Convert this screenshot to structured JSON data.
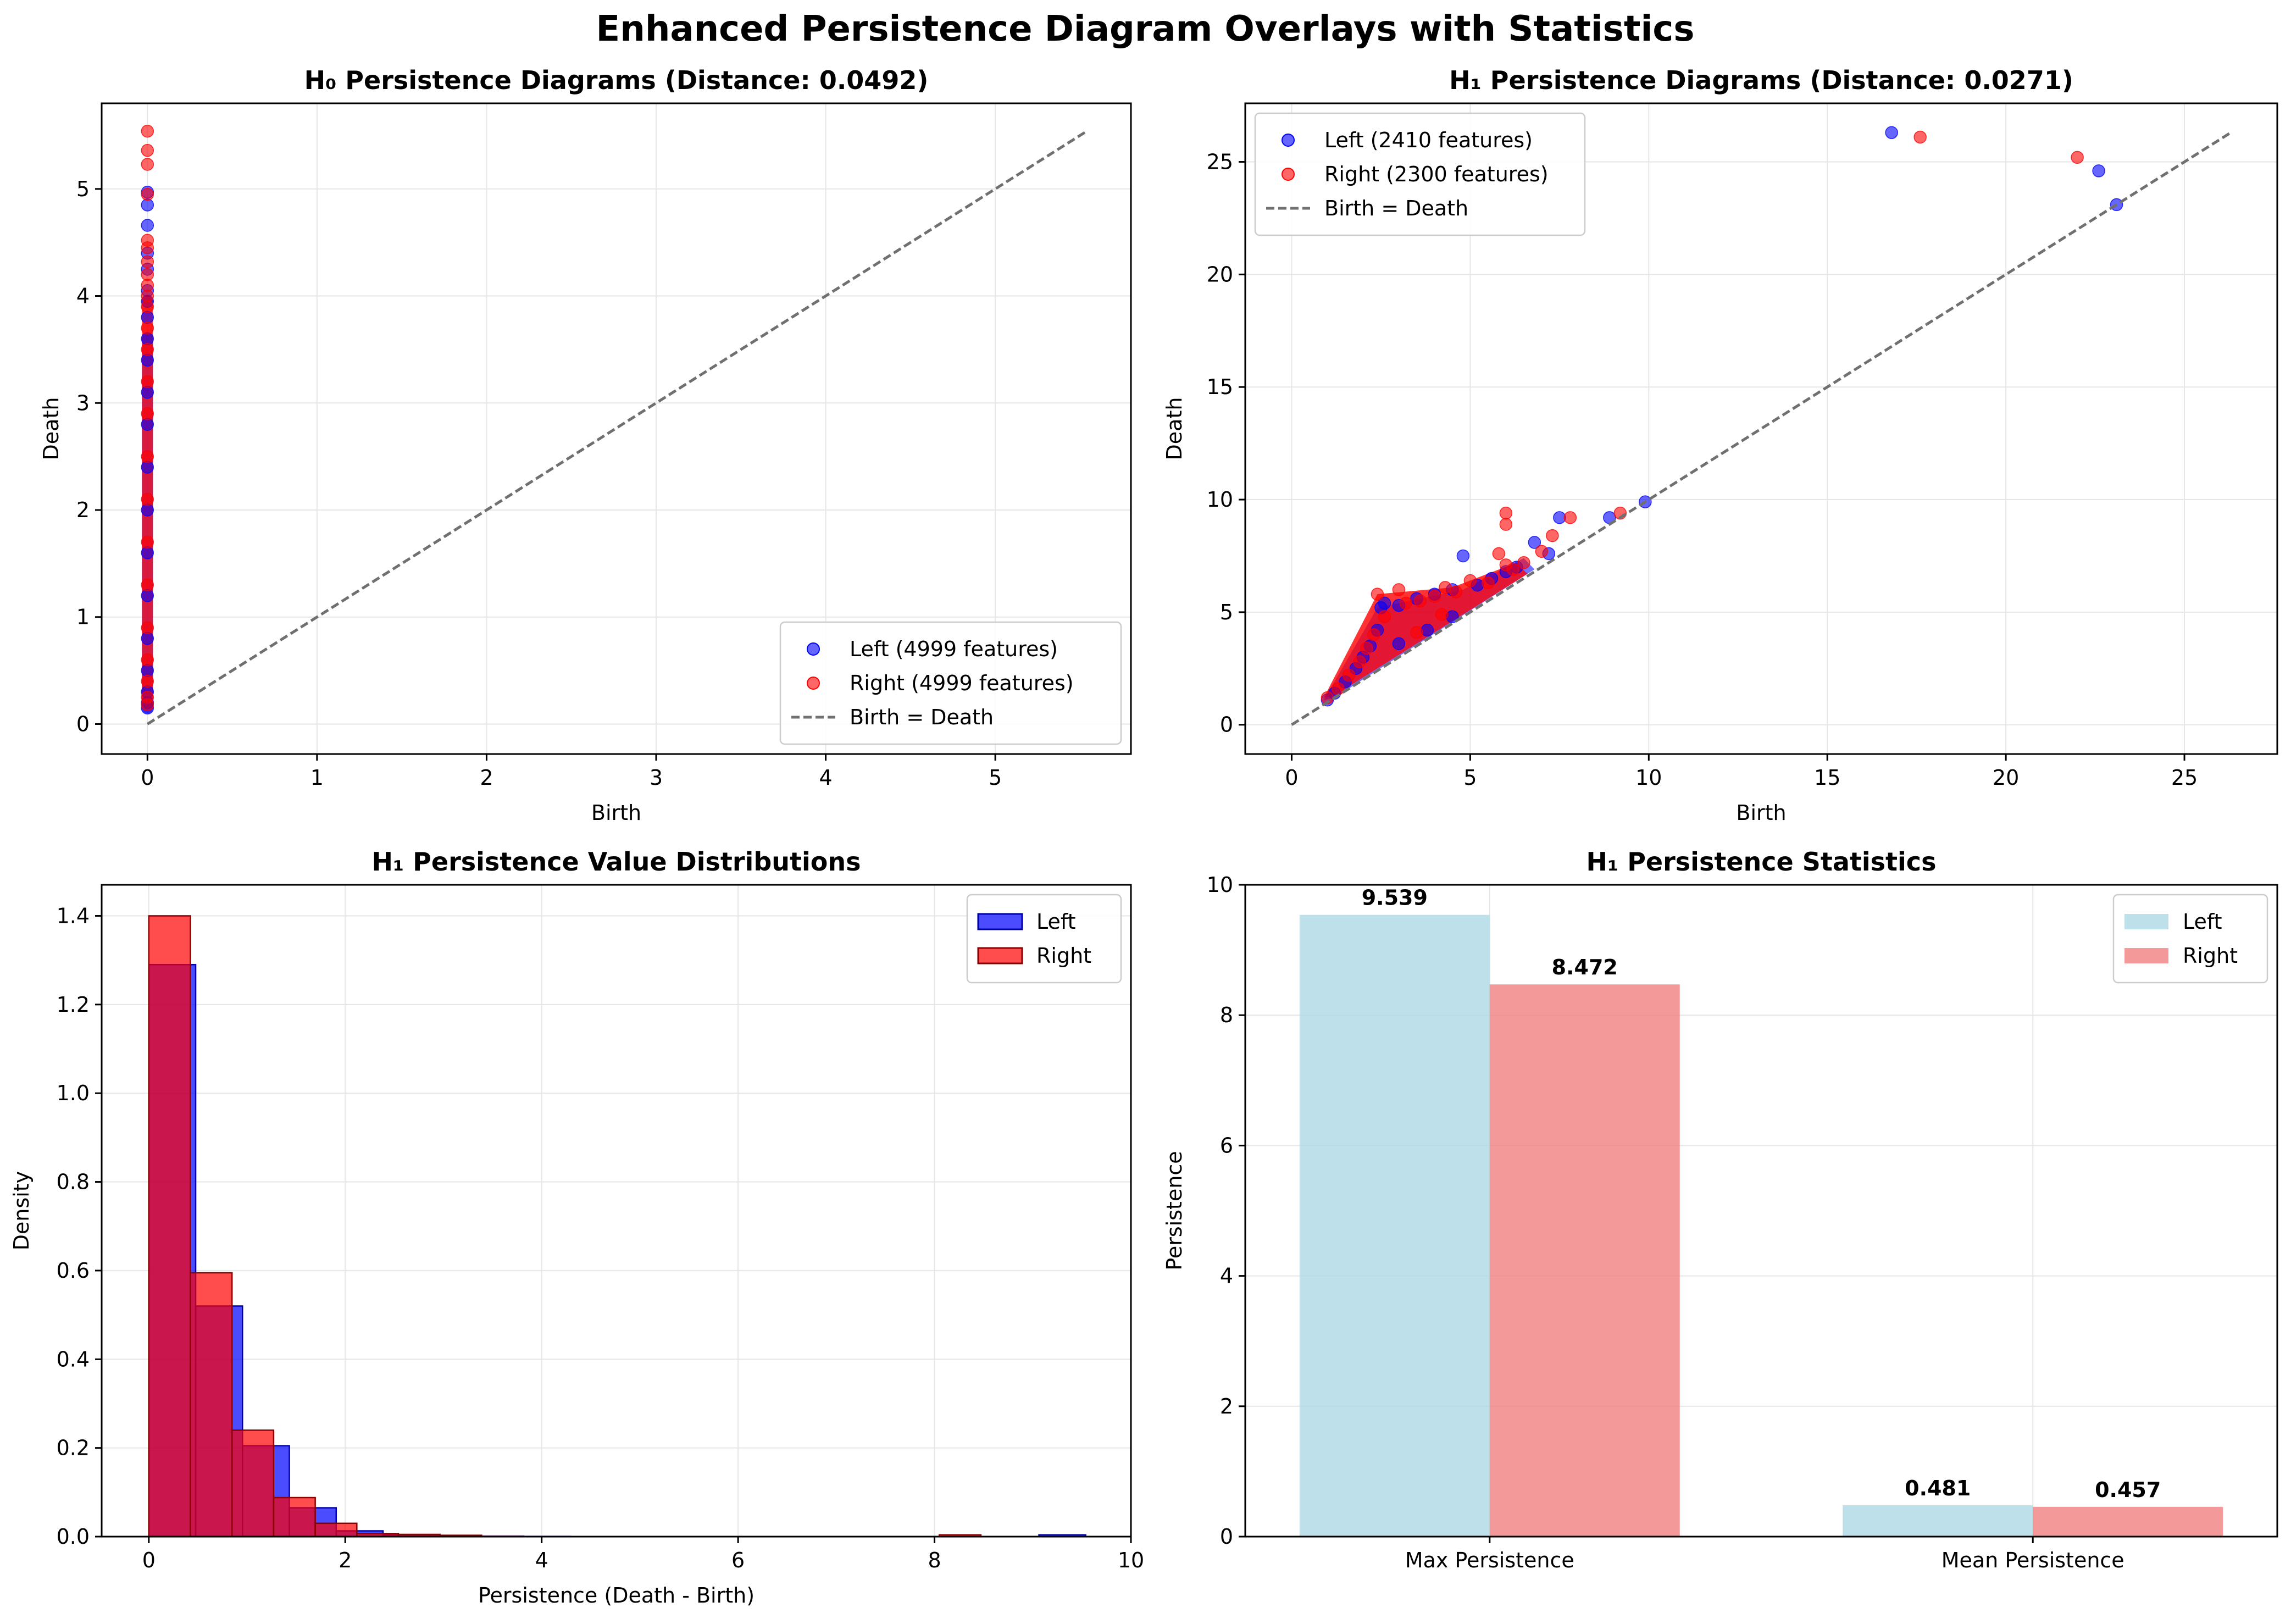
{
  "figure": {
    "title": "Enhanced Persistence Diagram Overlays with Statistics"
  },
  "chart_data": [
    {
      "type": "scatter",
      "title": "H₀ Persistence Diagrams (Distance: 0.0492)",
      "xlabel": "Birth",
      "ylabel": "Death",
      "xlim": [
        -0.27,
        5.8
      ],
      "ylim": [
        -0.28,
        5.8
      ],
      "xticks": [
        0,
        1,
        2,
        3,
        4,
        5
      ],
      "yticks": [
        0,
        1,
        2,
        3,
        4,
        5
      ],
      "grid": true,
      "legend_position": "lower-right",
      "series": [
        {
          "name": "Left (4999 features)",
          "color": "#0000ff",
          "points": [
            [
              0,
              0.15
            ],
            [
              0,
              0.2
            ],
            [
              0,
              0.3
            ],
            [
              0,
              0.5
            ],
            [
              0,
              0.8
            ],
            [
              0,
              1.2
            ],
            [
              0,
              1.6
            ],
            [
              0,
              2.0
            ],
            [
              0,
              2.4
            ],
            [
              0,
              2.8
            ],
            [
              0,
              3.1
            ],
            [
              0,
              3.4
            ],
            [
              0,
              3.6
            ],
            [
              0,
              3.8
            ],
            [
              0,
              3.95
            ],
            [
              0,
              4.05
            ],
            [
              0,
              4.25
            ],
            [
              0,
              4.4
            ],
            [
              0,
              4.66
            ],
            [
              0,
              4.85
            ],
            [
              0,
              4.97
            ]
          ]
        },
        {
          "name": "Right (4999 features)",
          "color": "#ff0000",
          "points": [
            [
              0,
              0.18
            ],
            [
              0,
              0.25
            ],
            [
              0,
              0.4
            ],
            [
              0,
              0.6
            ],
            [
              0,
              0.9
            ],
            [
              0,
              1.3
            ],
            [
              0,
              1.7
            ],
            [
              0,
              2.1
            ],
            [
              0,
              2.5
            ],
            [
              0,
              2.9
            ],
            [
              0,
              3.2
            ],
            [
              0,
              3.5
            ],
            [
              0,
              3.7
            ],
            [
              0,
              3.9
            ],
            [
              0,
              4.0
            ],
            [
              0,
              4.1
            ],
            [
              0,
              4.2
            ],
            [
              0,
              4.32
            ],
            [
              0,
              4.45
            ],
            [
              0,
              4.52
            ],
            [
              0,
              4.95
            ],
            [
              0,
              5.23
            ],
            [
              0,
              5.36
            ],
            [
              0,
              5.54
            ]
          ]
        }
      ],
      "reference_line": {
        "name": "Birth = Death",
        "from": [
          0,
          0
        ],
        "to": [
          5.53,
          5.53
        ],
        "color": "#707070"
      }
    },
    {
      "type": "scatter",
      "title": "H₁ Persistence Diagrams (Distance: 0.0271)",
      "xlabel": "Birth",
      "ylabel": "Death",
      "xlim": [
        -1.3,
        27.6
      ],
      "ylim": [
        -1.3,
        27.6
      ],
      "xticks": [
        0,
        5,
        10,
        15,
        20,
        25
      ],
      "yticks": [
        0,
        5,
        10,
        15,
        20,
        25
      ],
      "grid": true,
      "legend_position": "upper-left",
      "series": [
        {
          "name": "Left (2410 features)",
          "color": "#0000ff",
          "points": [
            [
              1.0,
              1.1
            ],
            [
              1.2,
              1.4
            ],
            [
              1.5,
              1.9
            ],
            [
              1.8,
              2.5
            ],
            [
              2.0,
              3.0
            ],
            [
              2.2,
              3.5
            ],
            [
              2.4,
              4.2
            ],
            [
              2.5,
              5.2
            ],
            [
              2.6,
              5.4
            ],
            [
              3.0,
              5.3
            ],
            [
              3.5,
              5.6
            ],
            [
              4.0,
              5.8
            ],
            [
              4.5,
              6.0
            ],
            [
              4.8,
              7.5
            ],
            [
              5.2,
              6.2
            ],
            [
              5.6,
              6.5
            ],
            [
              6.0,
              6.8
            ],
            [
              6.3,
              7.0
            ],
            [
              6.8,
              8.1
            ],
            [
              7.2,
              7.6
            ],
            [
              7.5,
              9.2
            ],
            [
              8.9,
              9.2
            ],
            [
              9.9,
              9.9
            ],
            [
              16.8,
              26.3
            ],
            [
              22.6,
              24.6
            ],
            [
              23.1,
              23.1
            ],
            [
              3.0,
              3.6
            ],
            [
              3.8,
              4.2
            ],
            [
              4.5,
              4.8
            ]
          ]
        },
        {
          "name": "Right (2300 features)",
          "color": "#ff0000",
          "points": [
            [
              1.0,
              1.2
            ],
            [
              1.3,
              1.6
            ],
            [
              1.6,
              2.2
            ],
            [
              1.9,
              2.8
            ],
            [
              2.1,
              3.4
            ],
            [
              2.3,
              4.0
            ],
            [
              2.4,
              5.8
            ],
            [
              2.6,
              4.8
            ],
            [
              3.0,
              6.0
            ],
            [
              3.2,
              5.4
            ],
            [
              3.6,
              5.5
            ],
            [
              4.0,
              5.7
            ],
            [
              4.3,
              6.1
            ],
            [
              4.6,
              5.9
            ],
            [
              5.0,
              6.4
            ],
            [
              5.5,
              6.3
            ],
            [
              6.0,
              7.1
            ],
            [
              6.2,
              6.9
            ],
            [
              6.5,
              7.2
            ],
            [
              6.0,
              9.4
            ],
            [
              6.0,
              8.9
            ],
            [
              7.0,
              7.7
            ],
            [
              7.3,
              8.4
            ],
            [
              7.8,
              9.2
            ],
            [
              5.8,
              7.6
            ],
            [
              9.2,
              9.4
            ],
            [
              17.6,
              26.1
            ],
            [
              22.0,
              25.2
            ],
            [
              3.5,
              4.1
            ],
            [
              4.2,
              4.9
            ]
          ]
        }
      ],
      "dense_band": true,
      "reference_line": {
        "name": "Birth = Death",
        "from": [
          0,
          0
        ],
        "to": [
          26.3,
          26.3
        ],
        "color": "#707070"
      }
    },
    {
      "type": "histogram",
      "title": "H₁ Persistence Value Distributions",
      "xlabel": "Persistence (Death - Birth)",
      "ylabel": "Density",
      "xlim": [
        -0.48,
        10.0
      ],
      "ylim": [
        0,
        1.47
      ],
      "xticks": [
        0,
        2,
        4,
        6,
        8,
        10
      ],
      "yticks": [
        0.0,
        0.2,
        0.4,
        0.6,
        0.8,
        1.0,
        1.2,
        1.4
      ],
      "grid": true,
      "legend_position": "upper-right",
      "series": [
        {
          "name": "Left",
          "color": "#0000ff",
          "bin_edges": [
            0,
            0.477,
            0.954,
            1.431,
            1.908,
            2.385,
            2.862,
            3.339,
            3.816,
            4.293,
            4.77,
            5.247,
            5.724,
            6.201,
            6.678,
            7.155,
            7.632,
            8.109,
            8.586,
            9.063,
            9.539
          ],
          "values": [
            1.29,
            0.52,
            0.205,
            0.065,
            0.013,
            0.004,
            0.002,
            0.001,
            0.0005,
            0.0003,
            0.0003,
            0.0002,
            0.0002,
            0.0002,
            0.0002,
            0.0002,
            0.0002,
            0.0002,
            0.0002,
            0.004
          ]
        },
        {
          "name": "Right",
          "color": "#ff0000",
          "bin_edges": [
            0,
            0.4236,
            0.8472,
            1.2708,
            1.6944,
            2.118,
            2.5416,
            2.9652,
            3.3888,
            3.8124,
            4.236,
            4.6596,
            5.0832,
            5.5068,
            5.9304,
            6.354,
            6.7776,
            7.2012,
            7.6248,
            8.0484,
            8.472
          ],
          "values": [
            1.4,
            0.595,
            0.24,
            0.088,
            0.03,
            0.007,
            0.005,
            0.003,
            0.0006,
            0.0003,
            0.0003,
            0.0003,
            0.0003,
            0.0003,
            0.0003,
            0.0003,
            0.0003,
            0.0003,
            0.0003,
            0.004
          ]
        }
      ]
    },
    {
      "type": "bar",
      "title": "H₁ Persistence Statistics",
      "xlabel": "",
      "ylabel": "Persistence",
      "ylim": [
        0,
        10
      ],
      "yticks": [
        0,
        2,
        4,
        6,
        8,
        10
      ],
      "grid": true,
      "legend_position": "upper-right",
      "categories": [
        "Max Persistence",
        "Mean Persistence"
      ],
      "series": [
        {
          "name": "Left",
          "color": "#add8e6",
          "values": [
            9.539,
            0.481
          ],
          "labels": [
            "9.539",
            "0.481"
          ]
        },
        {
          "name": "Right",
          "color": "#f08080",
          "values": [
            8.472,
            0.457
          ],
          "labels": [
            "8.472",
            "0.457"
          ]
        }
      ]
    }
  ]
}
